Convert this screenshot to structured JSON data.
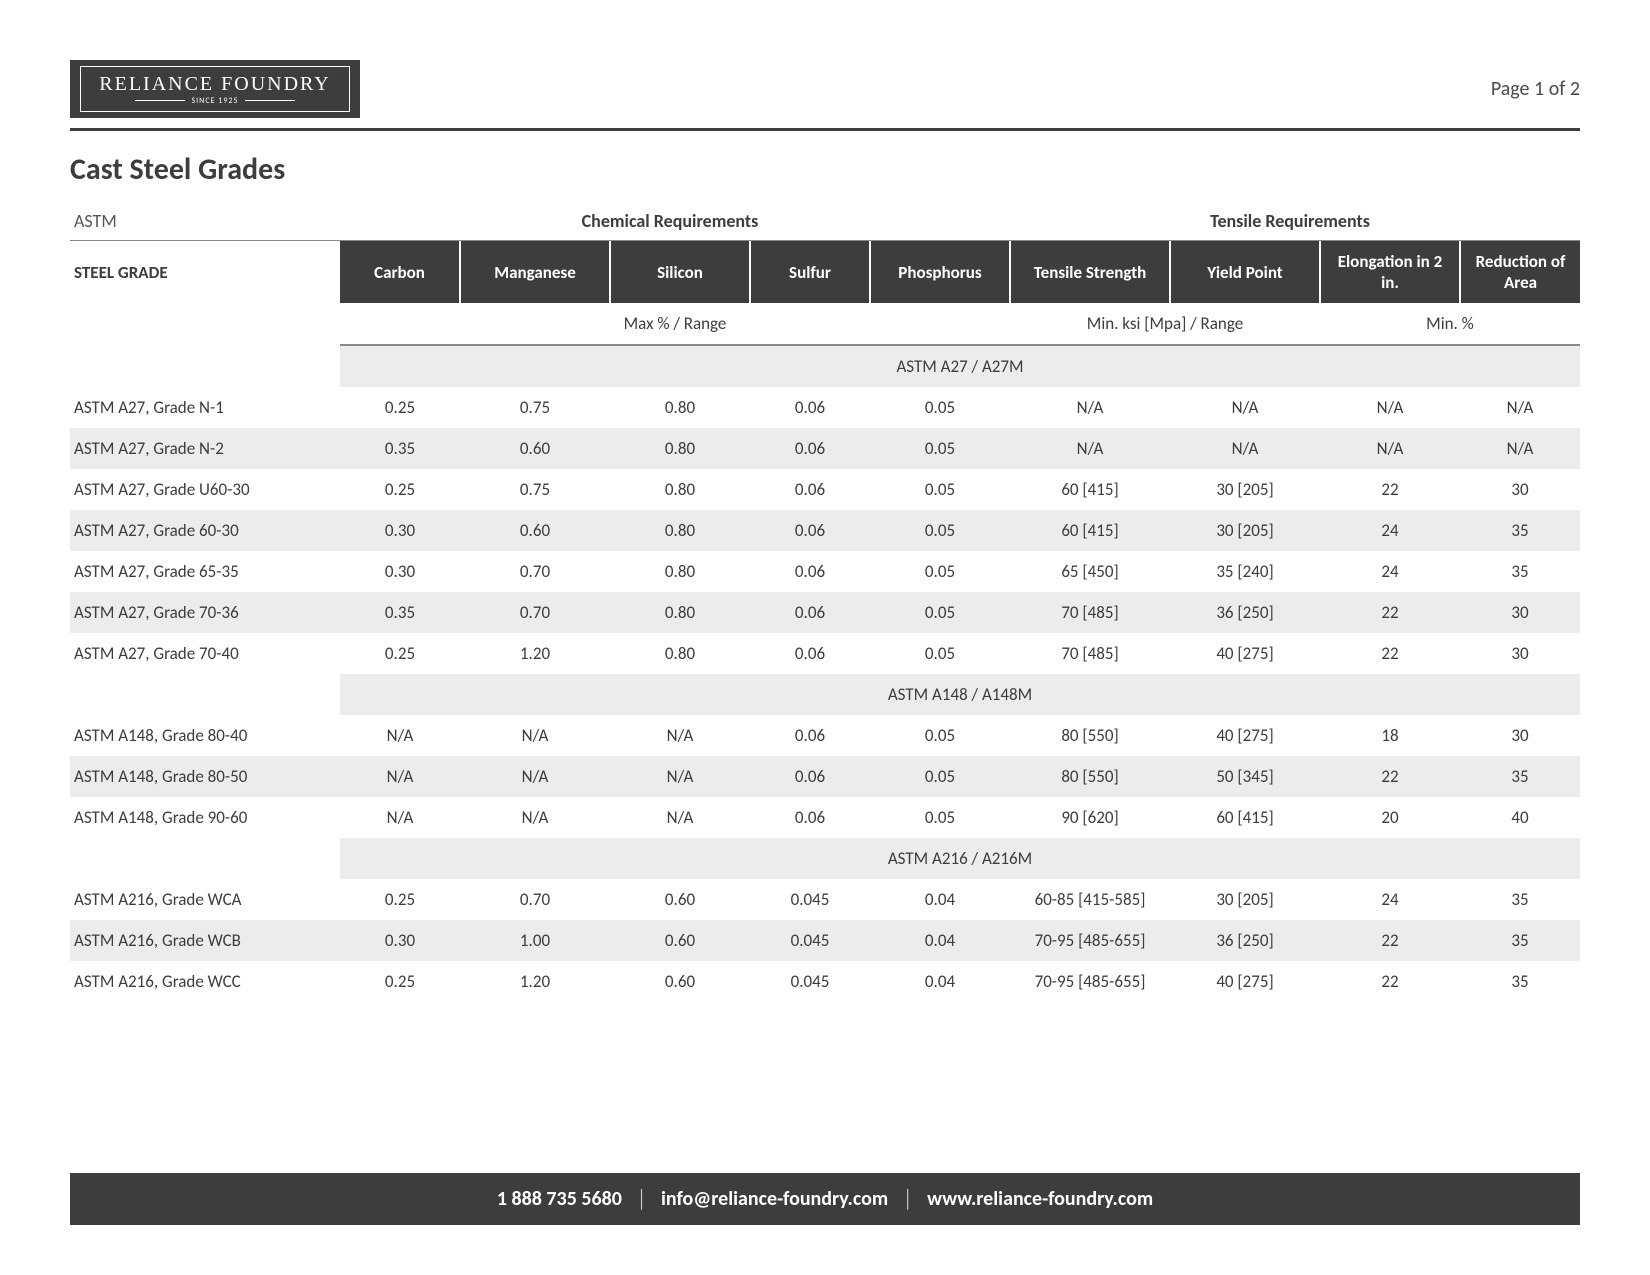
{
  "logo": {
    "name": "RELIANCE FOUNDRY",
    "since": "SINCE 1925"
  },
  "page_label": "Page 1 of 2",
  "title": "Cast Steel Grades",
  "super": {
    "astm": "ASTM",
    "chem": "Chemical Requirements",
    "tens": "Tensile Requirements"
  },
  "columns": {
    "grade": "STEEL GRADE",
    "carbon": "Carbon",
    "manganese": "Manganese",
    "silicon": "Silicon",
    "sulfur": "Sulfur",
    "phosphorus": "Phosphorus",
    "tensile": "Tensile Strength",
    "yield": "Yield Point",
    "elong": "Elongation in 2 in.",
    "reduc": "Reduction of Area"
  },
  "sub": {
    "maxrange": "Max % / Range",
    "minksi": "Min. ksi [Mpa] / Range",
    "minp": "Min. %"
  },
  "sections": [
    {
      "heading": "ASTM A27 / A27M",
      "rows": [
        {
          "g": "ASTM A27, Grade N-1",
          "c": "0.25",
          "mn": "0.75",
          "si": "0.80",
          "s": "0.06",
          "p": "0.05",
          "ts": "N/A",
          "yp": "N/A",
          "el": "N/A",
          "ra": "N/A"
        },
        {
          "g": "ASTM A27, Grade N-2",
          "c": "0.35",
          "mn": "0.60",
          "si": "0.80",
          "s": "0.06",
          "p": "0.05",
          "ts": "N/A",
          "yp": "N/A",
          "el": "N/A",
          "ra": "N/A"
        },
        {
          "g": "ASTM A27, Grade U60-30",
          "c": "0.25",
          "mn": "0.75",
          "si": "0.80",
          "s": "0.06",
          "p": "0.05",
          "ts": "60 [415]",
          "yp": "30 [205]",
          "el": "22",
          "ra": "30"
        },
        {
          "g": "ASTM A27, Grade 60-30",
          "c": "0.30",
          "mn": "0.60",
          "si": "0.80",
          "s": "0.06",
          "p": "0.05",
          "ts": "60 [415]",
          "yp": "30 [205]",
          "el": "24",
          "ra": "35"
        },
        {
          "g": "ASTM A27, Grade 65-35",
          "c": "0.30",
          "mn": "0.70",
          "si": "0.80",
          "s": "0.06",
          "p": "0.05",
          "ts": "65 [450]",
          "yp": "35 [240]",
          "el": "24",
          "ra": "35"
        },
        {
          "g": "ASTM A27, Grade 70-36",
          "c": "0.35",
          "mn": "0.70",
          "si": "0.80",
          "s": "0.06",
          "p": "0.05",
          "ts": "70 [485]",
          "yp": "36 [250]",
          "el": "22",
          "ra": "30"
        },
        {
          "g": "ASTM A27, Grade 70-40",
          "c": "0.25",
          "mn": "1.20",
          "si": "0.80",
          "s": "0.06",
          "p": "0.05",
          "ts": "70 [485]",
          "yp": "40 [275]",
          "el": "22",
          "ra": "30"
        }
      ]
    },
    {
      "heading": "ASTM A148 / A148M",
      "rows": [
        {
          "g": "ASTM A148, Grade 80-40",
          "c": "N/A",
          "mn": "N/A",
          "si": "N/A",
          "s": "0.06",
          "p": "0.05",
          "ts": "80 [550]",
          "yp": "40 [275]",
          "el": "18",
          "ra": "30"
        },
        {
          "g": "ASTM A148, Grade 80-50",
          "c": "N/A",
          "mn": "N/A",
          "si": "N/A",
          "s": "0.06",
          "p": "0.05",
          "ts": "80 [550]",
          "yp": "50 [345]",
          "el": "22",
          "ra": "35"
        },
        {
          "g": "ASTM A148, Grade 90-60",
          "c": "N/A",
          "mn": "N/A",
          "si": "N/A",
          "s": "0.06",
          "p": "0.05",
          "ts": "90 [620]",
          "yp": "60 [415]",
          "el": "20",
          "ra": "40"
        }
      ]
    },
    {
      "heading": "ASTM A216 / A216M",
      "rows": [
        {
          "g": "ASTM A216, Grade WCA",
          "c": "0.25",
          "mn": "0.70",
          "si": "0.60",
          "s": "0.045",
          "p": "0.04",
          "ts": "60-85 [415-585]",
          "yp": "30 [205]",
          "el": "24",
          "ra": "35"
        },
        {
          "g": "ASTM A216, Grade WCB",
          "c": "0.30",
          "mn": "1.00",
          "si": "0.60",
          "s": "0.045",
          "p": "0.04",
          "ts": "70-95 [485-655]",
          "yp": "36 [250]",
          "el": "22",
          "ra": "35"
        },
        {
          "g": "ASTM A216, Grade WCC",
          "c": "0.25",
          "mn": "1.20",
          "si": "0.60",
          "s": "0.045",
          "p": "0.04",
          "ts": "70-95 [485-655]",
          "yp": "40 [275]",
          "el": "22",
          "ra": "35"
        }
      ]
    }
  ],
  "footer": {
    "phone": "1 888 735 5680",
    "email": "info@reliance-foundry.com",
    "web": "www.reliance-foundry.com"
  }
}
